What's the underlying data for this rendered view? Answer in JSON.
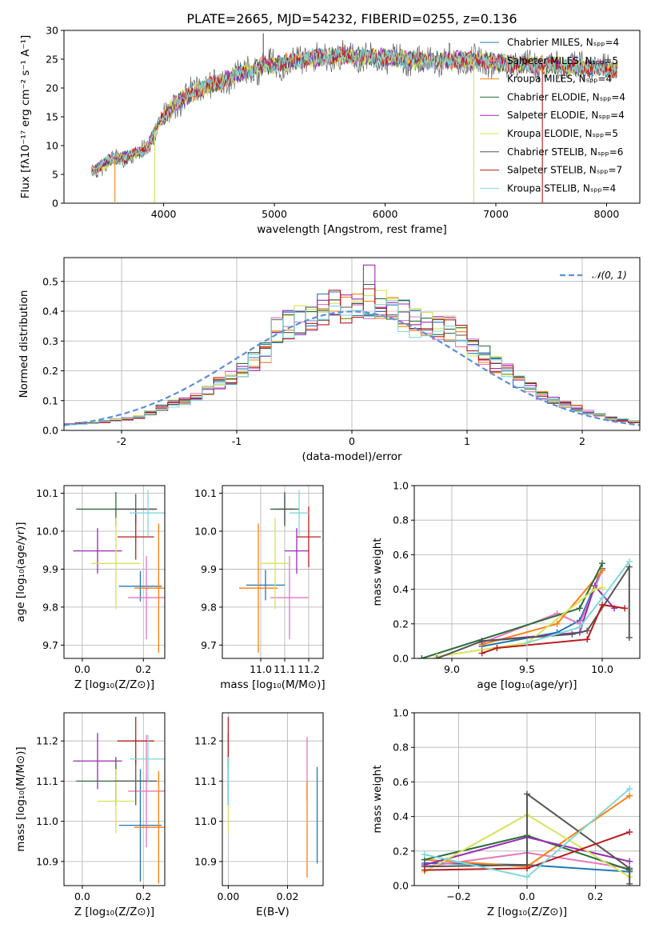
{
  "figure": {
    "title": "PLATE=2665, MJD=54232, FIBERID=0255, z=0.136"
  },
  "colors": {
    "models": [
      "#1f77b4",
      "#e377c2",
      "#ff7f0e",
      "#2a6e3a",
      "#9b2ab6",
      "#d6e25a",
      "#555555",
      "#b81c1c",
      "#7fd8dd"
    ],
    "normal_curve": "#5b8fd9"
  },
  "chart_data": [
    {
      "id": "spectrum",
      "type": "line",
      "xlabel": "wavelength [Angstrom, rest frame]",
      "ylabel": "Flux [fλ10⁻¹⁷ erg cm⁻² s⁻¹ A⁻¹]",
      "xlim": [
        3100,
        8300
      ],
      "ylim": [
        0,
        30
      ],
      "xticks": [
        4000,
        5000,
        6000,
        7000,
        8000
      ],
      "yticks": [
        0,
        5,
        10,
        15,
        20,
        25,
        30
      ],
      "grid": false,
      "legend_position": "top-right",
      "legend": [
        "Chabrier MILES, Nₛₚₚ=4",
        "Salpeter MILES, Nₛₚₚ=5",
        "Kroupa MILES, Nₛₚₚ=4",
        "Chabrier ELODIE, Nₛₚₚ=4",
        "Salpeter ELODIE, Nₛₚₚ=4",
        "Kroupa ELODIE, Nₛₚₚ=5",
        "Chabrier STELIB, Nₛₚₚ=6",
        "Salpeter STELIB, Nₛₚₚ=7",
        "Kroupa STELIB, Nₛₚₚ=4"
      ],
      "continuum": {
        "x": [
          3350,
          3500,
          3700,
          3850,
          3950,
          4100,
          4300,
          4500,
          4700,
          4900,
          5200,
          5500,
          5800,
          6000,
          6300,
          6600,
          6900,
          7200,
          7500,
          7800,
          8100
        ],
        "y": [
          5.5,
          7.3,
          8.2,
          9.5,
          13.8,
          17.2,
          19.5,
          21.0,
          22.5,
          23.8,
          24.8,
          25.5,
          25.5,
          25.3,
          24.6,
          24.9,
          24.6,
          24.1,
          24.0,
          23.6,
          23.2
        ]
      },
      "spikes": [
        {
          "x": 3560,
          "y": 0.2
        },
        {
          "x": 3920,
          "y": 0.1
        },
        {
          "x": 4900,
          "y": 29.5
        },
        {
          "x": 6800,
          "y": 0.1
        },
        {
          "x": 7420,
          "y": 0.1
        }
      ]
    },
    {
      "id": "residual_histogram",
      "type": "bar",
      "xlabel": "(data-model)/error",
      "ylabel": "Normed distribution",
      "xlim": [
        -2.5,
        2.5
      ],
      "ylim": [
        0,
        0.58
      ],
      "xticks": [
        -2,
        -1,
        0,
        1,
        2
      ],
      "yticks": [
        0.0,
        0.1,
        0.2,
        0.3,
        0.4,
        0.5
      ],
      "grid": true,
      "legend_position": "top-right",
      "legend": [
        "𝒩(0, 1)"
      ],
      "bin_width": 0.1,
      "base_hist": [
        0.02,
        0.023,
        0.026,
        0.03,
        0.035,
        0.04,
        0.045,
        0.06,
        0.075,
        0.09,
        0.1,
        0.115,
        0.13,
        0.16,
        0.18,
        0.205,
        0.23,
        0.26,
        0.335,
        0.355,
        0.37,
        0.38,
        0.41,
        0.42,
        0.41,
        0.415,
        0.43,
        0.415,
        0.4,
        0.385,
        0.36,
        0.35,
        0.35,
        0.34,
        0.31,
        0.285,
        0.255,
        0.22,
        0.2,
        0.165,
        0.14,
        0.115,
        0.1,
        0.085,
        0.075,
        0.06,
        0.05,
        0.04,
        0.035,
        0.03
      ],
      "normal": {
        "mu": 0,
        "sigma": 1
      }
    },
    {
      "id": "age_vs_metallicity",
      "type": "scatter",
      "xlabel": "Z [log₁₀(Z/Z⊙)]",
      "ylabel": "age  [log₁₀(age/yr)]",
      "xlim": [
        -0.06,
        0.27
      ],
      "ylim": [
        9.665,
        10.12
      ],
      "xticks": [
        0.0,
        0.2
      ],
      "yticks": [
        9.7,
        9.8,
        9.9,
        10.0,
        10.1
      ],
      "grid": true,
      "points": [
        {
          "x": 0.19,
          "y": 9.855,
          "xerr": 0.07,
          "yerr": 0.04
        },
        {
          "x": 0.21,
          "y": 9.825,
          "xerr": 0.06,
          "yerr": 0.11
        },
        {
          "x": 0.25,
          "y": 9.85,
          "xerr": 0.08,
          "yerr": 0.17
        },
        {
          "x": 0.11,
          "y": 10.058,
          "xerr": 0.13,
          "yerr": 0.045
        },
        {
          "x": 0.05,
          "y": 9.948,
          "xerr": 0.08,
          "yerr": 0.06
        },
        {
          "x": 0.11,
          "y": 9.915,
          "xerr": 0.08,
          "yerr": 0.12
        },
        {
          "x": 0.175,
          "y": 10.058,
          "xerr": 0.07,
          "yerr": 0.04
        },
        {
          "x": 0.175,
          "y": 9.985,
          "xerr": 0.06,
          "yerr": 0.06
        },
        {
          "x": 0.215,
          "y": 10.048,
          "xerr": 0.06,
          "yerr": 0.06
        }
      ]
    },
    {
      "id": "age_vs_mass",
      "type": "scatter",
      "xlabel": "mass [log₁₀(M/M⊙)]",
      "ylabel": "",
      "xlim": [
        10.84,
        11.26
      ],
      "ylim": [
        9.665,
        10.12
      ],
      "xticks": [
        11.0,
        11.1,
        11.2
      ],
      "yticks": [
        9.7,
        9.8,
        9.9,
        10.0,
        10.1
      ],
      "grid": true,
      "points": [
        {
          "x": 11.02,
          "y": 9.858,
          "xerr": 0.08,
          "yerr": 0.04
        },
        {
          "x": 11.12,
          "y": 9.825,
          "xerr": 0.08,
          "yerr": 0.11
        },
        {
          "x": 10.99,
          "y": 9.85,
          "xerr": 0.08,
          "yerr": 0.17
        },
        {
          "x": 11.1,
          "y": 10.058,
          "xerr": 0.06,
          "yerr": 0.045
        },
        {
          "x": 11.15,
          "y": 9.948,
          "xerr": 0.05,
          "yerr": 0.06
        },
        {
          "x": 11.06,
          "y": 9.915,
          "xerr": 0.06,
          "yerr": 0.12
        },
        {
          "x": 11.1,
          "y": 10.058,
          "xerr": 0.04,
          "yerr": 0.04
        },
        {
          "x": 11.2,
          "y": 9.985,
          "xerr": 0.05,
          "yerr": 0.08
        },
        {
          "x": 11.16,
          "y": 10.048,
          "xerr": 0.04,
          "yerr": 0.06
        }
      ]
    },
    {
      "id": "mass_weight_vs_age",
      "type": "line",
      "xlabel": "age  [log₁₀(age/yr)]",
      "ylabel": "mass weight",
      "xlim": [
        8.75,
        10.25
      ],
      "ylim": [
        0,
        1
      ],
      "xticks": [
        9.0,
        9.5,
        10.0
      ],
      "yticks": [
        0.0,
        0.2,
        0.4,
        0.6,
        0.8,
        1.0
      ],
      "grid": true,
      "series": [
        {
          "x": [
            9.2,
            9.7,
            9.85,
            10.0
          ],
          "y": [
            0.07,
            0.15,
            0.22,
            0.52
          ]
        },
        {
          "x": [
            9.2,
            9.7,
            9.85,
            10.0
          ],
          "y": [
            0.09,
            0.26,
            0.2,
            0.51
          ]
        },
        {
          "x": [
            9.2,
            9.7,
            10.0
          ],
          "y": [
            0.08,
            0.2,
            0.51
          ]
        },
        {
          "x": [
            8.8,
            9.85,
            10.0
          ],
          "y": [
            0.0,
            0.29,
            0.55
          ]
        },
        {
          "x": [
            9.2,
            9.85,
            9.95,
            10.08
          ],
          "y": [
            0.1,
            0.15,
            0.42,
            0.29
          ]
        },
        {
          "x": [
            8.9,
            9.5,
            9.95,
            10.0
          ],
          "y": [
            0.01,
            0.09,
            0.4,
            0.41
          ]
        },
        {
          "x": [
            8.9,
            9.2,
            9.8,
            9.9,
            10.18,
            10.18
          ],
          "y": [
            0.0,
            0.1,
            0.14,
            0.16,
            0.53,
            0.12
          ]
        },
        {
          "x": [
            9.2,
            9.3,
            9.9,
            10.0,
            10.15
          ],
          "y": [
            0.03,
            0.06,
            0.11,
            0.31,
            0.29
          ]
        },
        {
          "x": [
            9.5,
            9.85,
            10.0,
            10.18
          ],
          "y": [
            0.09,
            0.18,
            0.35,
            0.56
          ]
        }
      ]
    },
    {
      "id": "mass_vs_metallicity",
      "type": "scatter",
      "xlabel": "Z [log₁₀(Z/Z⊙)]",
      "ylabel": "mass [log₁₀(M/M⊙)]",
      "xlim": [
        -0.06,
        0.27
      ],
      "ylim": [
        10.84,
        11.27
      ],
      "xticks": [
        0.0,
        0.2
      ],
      "yticks": [
        10.9,
        11.0,
        11.1,
        11.2
      ],
      "grid": true,
      "points": [
        {
          "x": 0.19,
          "y": 10.99,
          "xerr": 0.07,
          "yerr": 0.14
        },
        {
          "x": 0.21,
          "y": 11.075,
          "xerr": 0.06,
          "yerr": 0.14
        },
        {
          "x": 0.25,
          "y": 10.985,
          "xerr": 0.08,
          "yerr": 0.14
        },
        {
          "x": 0.11,
          "y": 11.1,
          "xerr": 0.13,
          "yerr": 0.06
        },
        {
          "x": 0.05,
          "y": 11.15,
          "xerr": 0.08,
          "yerr": 0.07
        },
        {
          "x": 0.11,
          "y": 11.05,
          "xerr": 0.06,
          "yerr": 0.08
        },
        {
          "x": 0.175,
          "y": 11.1,
          "xerr": 0.07,
          "yerr": 0.06
        },
        {
          "x": 0.175,
          "y": 11.2,
          "xerr": 0.06,
          "yerr": 0.06
        },
        {
          "x": 0.215,
          "y": 11.155,
          "xerr": 0.06,
          "yerr": 0.06
        }
      ]
    },
    {
      "id": "mass_vs_extinction",
      "type": "scatter",
      "xlabel": "E(B-V)",
      "ylabel": "",
      "xlim": [
        -0.002,
        0.032
      ],
      "ylim": [
        10.84,
        11.27
      ],
      "xticks": [
        0.0,
        0.02
      ],
      "yticks": [
        10.9,
        11.0,
        11.1,
        11.2
      ],
      "grid": true,
      "points": [
        {
          "x": 0.03,
          "y": 11.015,
          "xerr": 0.0,
          "yerr": 0.12
        },
        {
          "x": 0.0266,
          "y": 11.13,
          "xerr": 0.0,
          "yerr": 0.08
        },
        {
          "x": 0.0266,
          "y": 10.98,
          "xerr": 0.0,
          "yerr": 0.12
        },
        {
          "x": 0.0,
          "y": 11.1,
          "xerr": 0.0,
          "yerr": 0.06
        },
        {
          "x": 0.0,
          "y": 11.15,
          "xerr": 0.0,
          "yerr": 0.07
        },
        {
          "x": 0.0,
          "y": 11.05,
          "xerr": 0.0,
          "yerr": 0.08
        },
        {
          "x": 0.0,
          "y": 11.1,
          "xerr": 0.0,
          "yerr": 0.06
        },
        {
          "x": 0.0,
          "y": 11.2,
          "xerr": 0.0,
          "yerr": 0.06
        },
        {
          "x": 0.0,
          "y": 11.1,
          "xerr": 0.0,
          "yerr": 0.06
        }
      ]
    },
    {
      "id": "mass_weight_vs_metallicity",
      "type": "line",
      "xlabel": "Z [log₁₀(Z/Z⊙)]",
      "ylabel": "mass weight",
      "xlim": [
        -0.33,
        0.33
      ],
      "ylim": [
        0,
        1
      ],
      "xticks": [
        -0.2,
        0.0,
        0.2
      ],
      "yticks": [
        0.0,
        0.2,
        0.4,
        0.6,
        0.8,
        1.0
      ],
      "grid": true,
      "series": [
        {
          "x": [
            -0.3,
            0.0,
            0.3
          ],
          "y": [
            0.13,
            0.12,
            0.08
          ]
        },
        {
          "x": [
            -0.3,
            0.0,
            0.3
          ],
          "y": [
            0.11,
            0.19,
            0.1
          ]
        },
        {
          "x": [
            -0.3,
            0.0,
            0.3
          ],
          "y": [
            0.15,
            0.11,
            0.52
          ]
        },
        {
          "x": [
            -0.3,
            0.0,
            0.3
          ],
          "y": [
            0.15,
            0.29,
            0.09
          ]
        },
        {
          "x": [
            -0.3,
            0.0,
            0.3
          ],
          "y": [
            0.12,
            0.28,
            0.14
          ]
        },
        {
          "x": [
            -0.3,
            0.0,
            0.3
          ],
          "y": [
            0.08,
            0.41,
            0.05
          ]
        },
        {
          "x": [
            -0.3,
            0.0,
            0.0,
            0.3,
            0.3
          ],
          "y": [
            0.11,
            0.12,
            0.53,
            0.1,
            0.01
          ]
        },
        {
          "x": [
            -0.3,
            0.0,
            0.3
          ],
          "y": [
            0.09,
            0.1,
            0.31
          ]
        },
        {
          "x": [
            -0.3,
            0.0,
            0.3
          ],
          "y": [
            0.18,
            0.05,
            0.56
          ]
        }
      ]
    }
  ]
}
